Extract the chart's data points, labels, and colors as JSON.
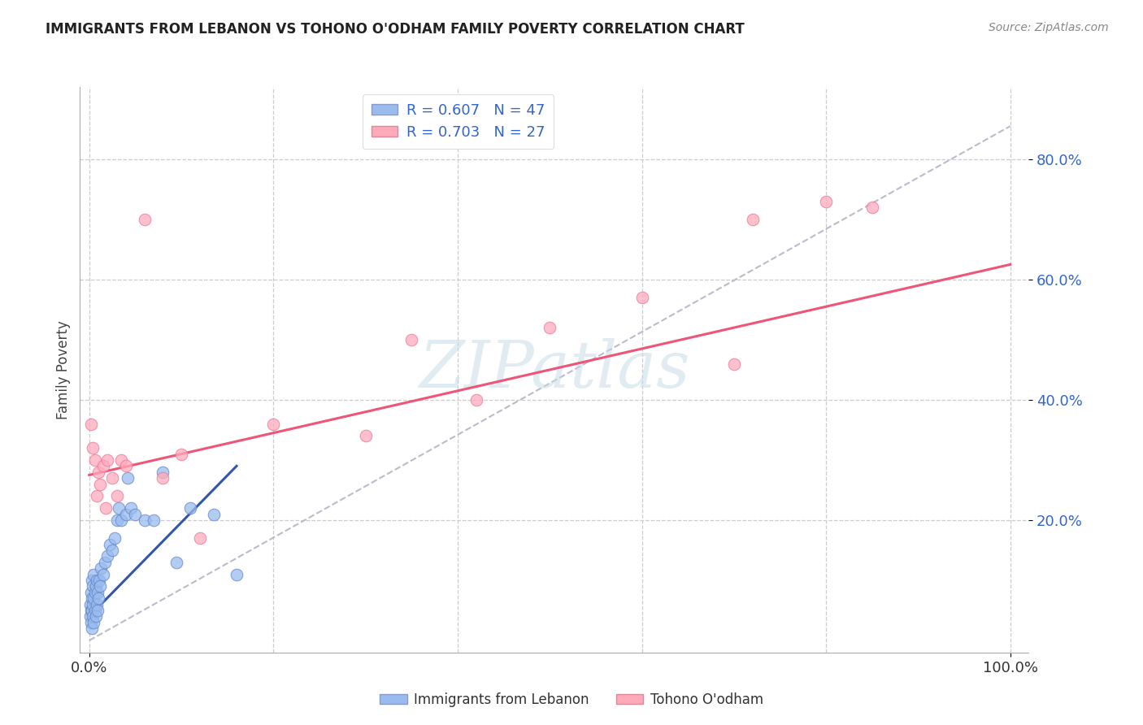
{
  "title": "IMMIGRANTS FROM LEBANON VS TOHONO O'ODHAM FAMILY POVERTY CORRELATION CHART",
  "source": "Source: ZipAtlas.com",
  "ylabel": "Family Poverty",
  "y_tick_labels": [
    "20.0%",
    "40.0%",
    "60.0%",
    "80.0%"
  ],
  "y_tick_vals": [
    0.2,
    0.4,
    0.6,
    0.8
  ],
  "x_tick_labels": [
    "0.0%",
    "100.0%"
  ],
  "x_tick_vals": [
    0.0,
    1.0
  ],
  "xlim": [
    -0.01,
    1.02
  ],
  "ylim": [
    -0.02,
    0.92
  ],
  "legend_blue_r": "R = 0.607",
  "legend_blue_n": "N = 47",
  "legend_pink_r": "R = 0.703",
  "legend_pink_n": "N = 27",
  "legend_blue_label": "Immigrants from Lebanon",
  "legend_pink_label": "Tohono O'odham",
  "blue_color": "#99BBEE",
  "pink_color": "#FFAABB",
  "blue_scatter_edge": "#6688CC",
  "pink_scatter_edge": "#EE7799",
  "blue_line_color": "#3355AA",
  "pink_line_color": "#EE5577",
  "diagonal_color": "#BBBBCC",
  "watermark_text": "ZIPatlas",
  "blue_scatter_x": [
    0.001,
    0.001,
    0.002,
    0.002,
    0.002,
    0.003,
    0.003,
    0.003,
    0.003,
    0.004,
    0.004,
    0.004,
    0.005,
    0.005,
    0.005,
    0.006,
    0.006,
    0.007,
    0.007,
    0.008,
    0.008,
    0.009,
    0.009,
    0.01,
    0.011,
    0.012,
    0.013,
    0.015,
    0.017,
    0.02,
    0.022,
    0.025,
    0.028,
    0.03,
    0.032,
    0.035,
    0.04,
    0.042,
    0.045,
    0.05,
    0.06,
    0.07,
    0.08,
    0.095,
    0.11,
    0.135,
    0.16
  ],
  "blue_scatter_y": [
    0.04,
    0.06,
    0.03,
    0.05,
    0.08,
    0.02,
    0.05,
    0.07,
    0.1,
    0.04,
    0.06,
    0.09,
    0.03,
    0.07,
    0.11,
    0.05,
    0.08,
    0.04,
    0.09,
    0.06,
    0.1,
    0.05,
    0.08,
    0.07,
    0.1,
    0.09,
    0.12,
    0.11,
    0.13,
    0.14,
    0.16,
    0.15,
    0.17,
    0.2,
    0.22,
    0.2,
    0.21,
    0.27,
    0.22,
    0.21,
    0.2,
    0.2,
    0.28,
    0.13,
    0.22,
    0.21,
    0.11
  ],
  "pink_scatter_x": [
    0.002,
    0.004,
    0.006,
    0.008,
    0.01,
    0.012,
    0.015,
    0.018,
    0.02,
    0.025,
    0.03,
    0.035,
    0.04,
    0.06,
    0.08,
    0.1,
    0.12,
    0.2,
    0.3,
    0.35,
    0.42,
    0.5,
    0.6,
    0.7,
    0.72,
    0.8,
    0.85
  ],
  "pink_scatter_y": [
    0.36,
    0.32,
    0.3,
    0.24,
    0.28,
    0.26,
    0.29,
    0.22,
    0.3,
    0.27,
    0.24,
    0.3,
    0.29,
    0.7,
    0.27,
    0.31,
    0.17,
    0.36,
    0.34,
    0.5,
    0.4,
    0.52,
    0.57,
    0.46,
    0.7,
    0.73,
    0.72
  ],
  "blue_line_x": [
    0.0,
    0.16
  ],
  "blue_line_y": [
    0.04,
    0.29
  ],
  "pink_line_x": [
    0.0,
    1.0
  ],
  "pink_line_y": [
    0.275,
    0.625
  ],
  "diag_line_x": [
    0.0,
    1.0
  ],
  "diag_line_y": [
    0.0,
    0.855
  ]
}
